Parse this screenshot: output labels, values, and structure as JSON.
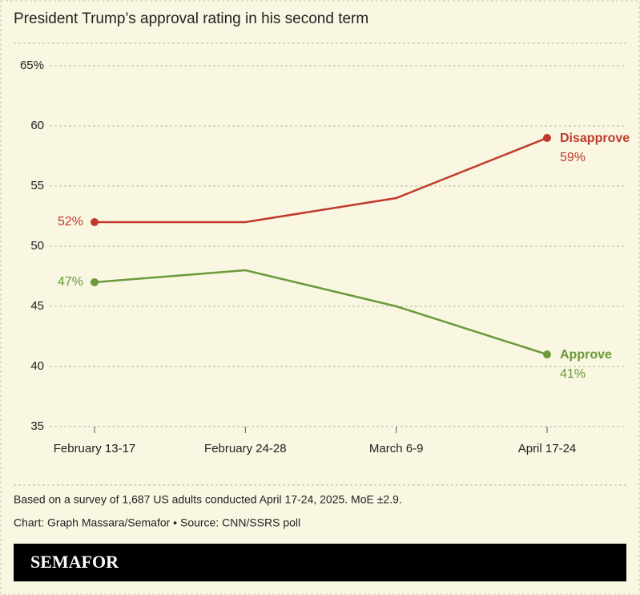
{
  "chart_data": {
    "type": "line",
    "title": "President Trump’s approval rating in his second term",
    "categories": [
      "February 13-17",
      "February 24-28",
      "March 6-9",
      "April 17-24"
    ],
    "series": [
      {
        "name": "Disapprove",
        "color": "#c0392b",
        "values": [
          52,
          52,
          54,
          59
        ],
        "value_labels": [
          "52%",
          null,
          null,
          "59%"
        ]
      },
      {
        "name": "Approve",
        "color": "#6a9a3a",
        "values": [
          47,
          48,
          45,
          41
        ],
        "value_labels": [
          "47%",
          null,
          null,
          "41%"
        ]
      }
    ],
    "ylim": [
      35,
      65
    ],
    "yticks": [
      35,
      40,
      45,
      50,
      55,
      60,
      {
        "value": 65,
        "label": "65%"
      }
    ],
    "grid": true,
    "note": "Based on a survey of 1,687 US adults conducted April 17-24, 2025. MoE ±2.9.",
    "credit": "Chart: Graph Massara/Semafor • Source: CNN/SSRS poll",
    "brand": "SEMAFOR"
  }
}
